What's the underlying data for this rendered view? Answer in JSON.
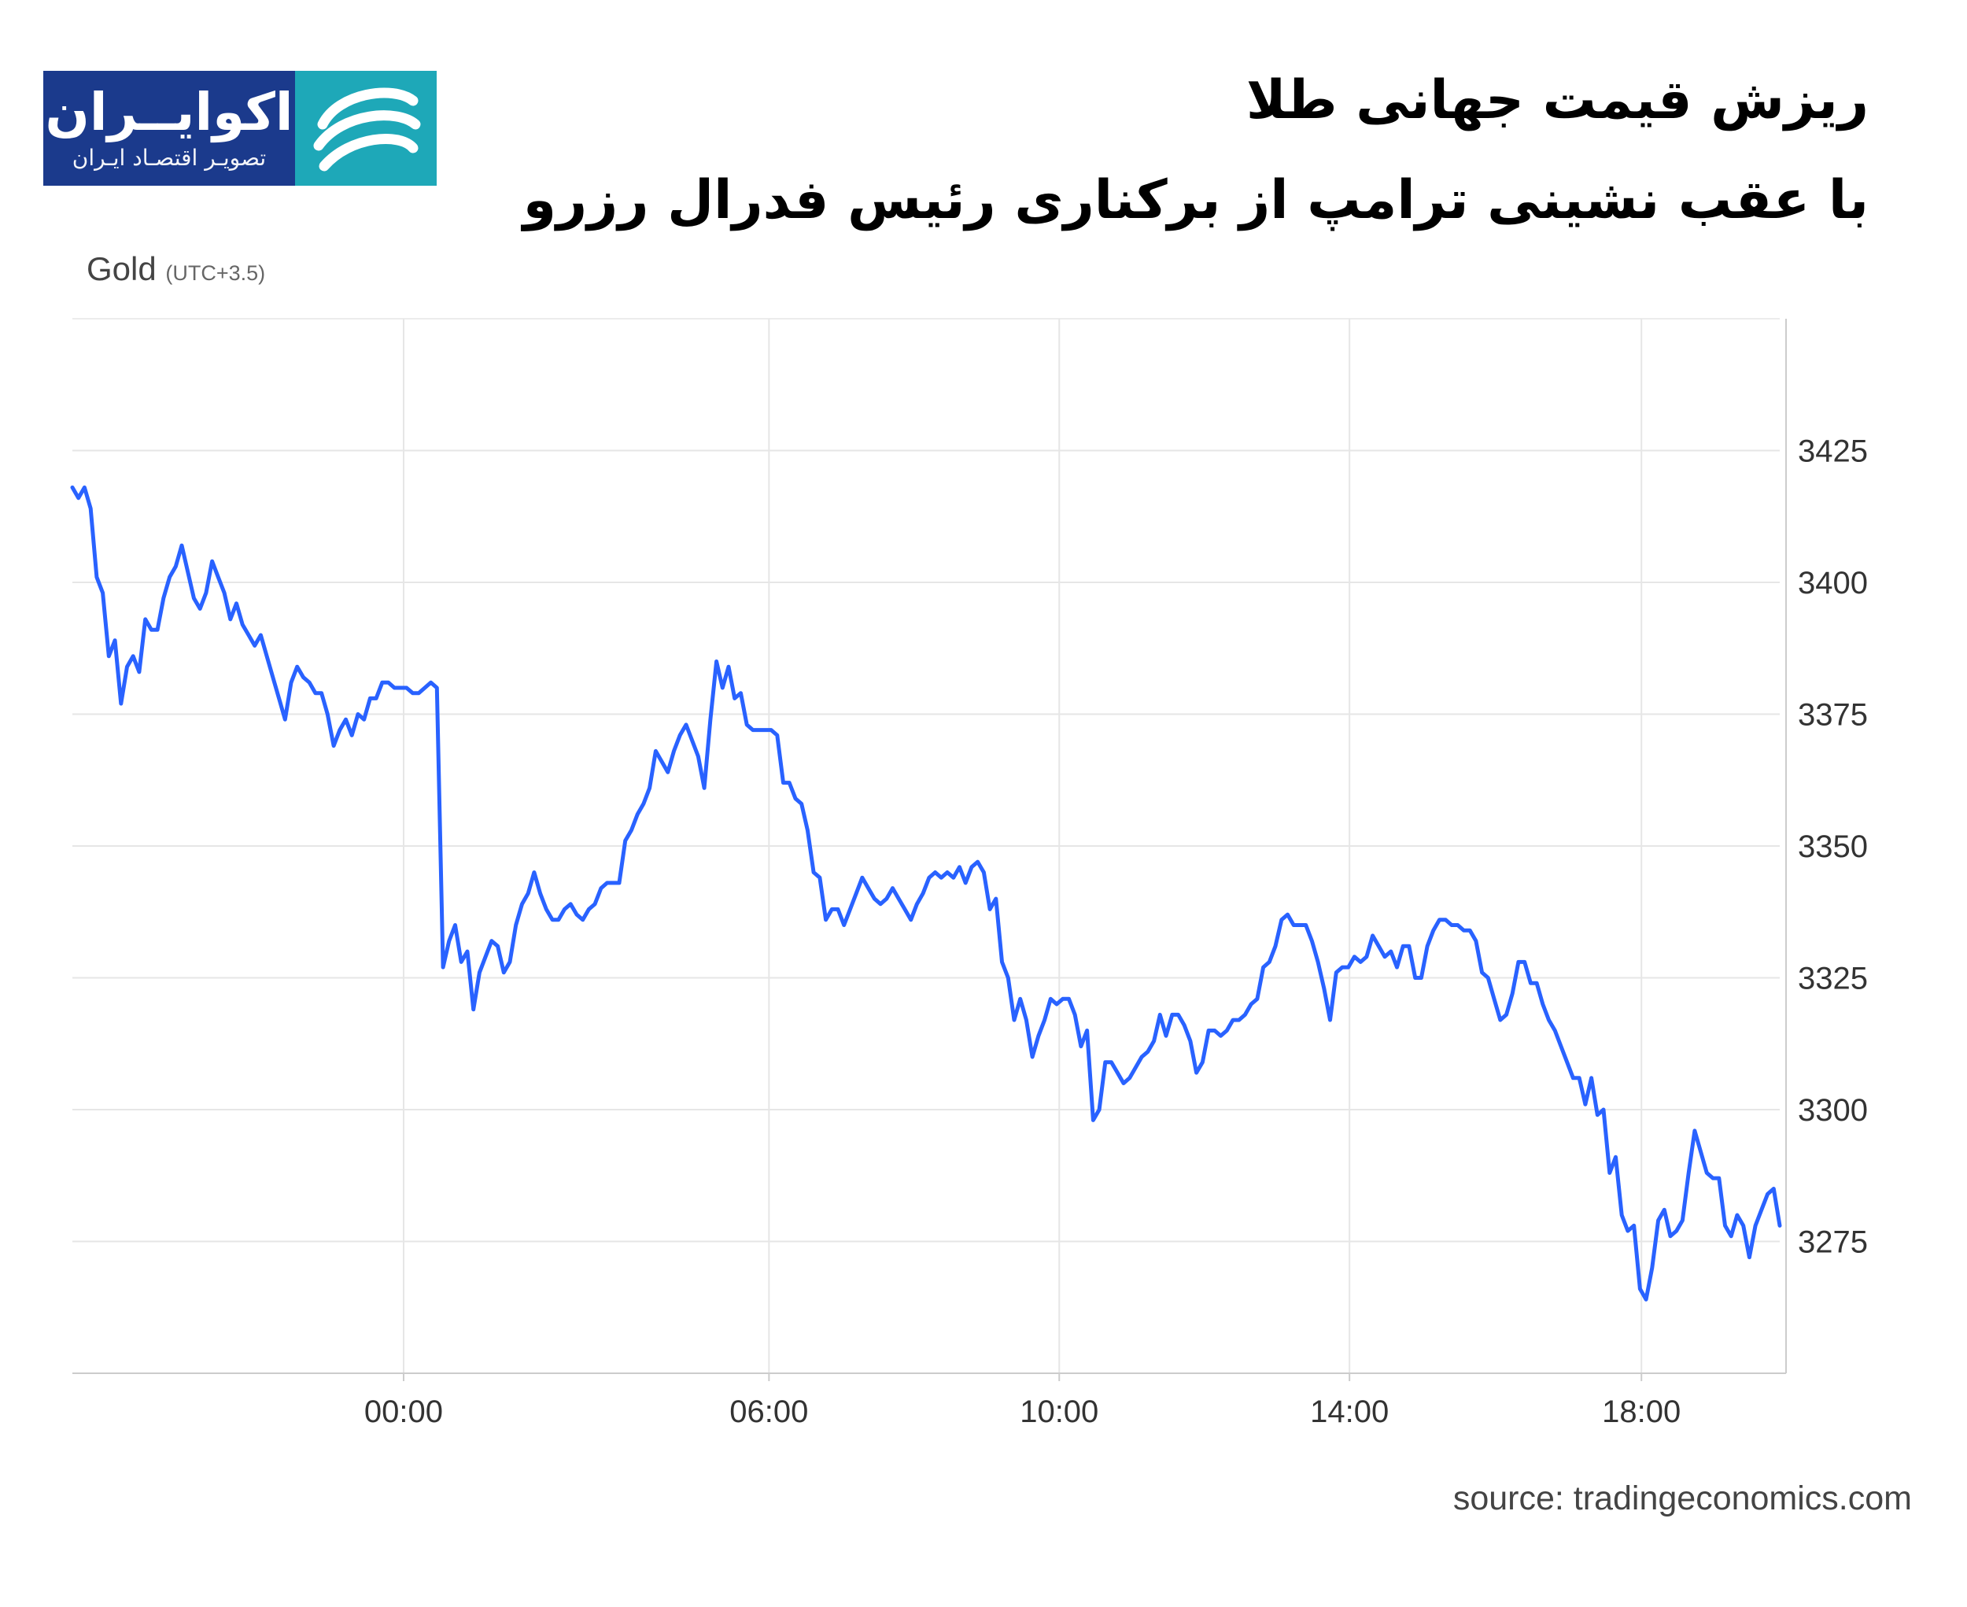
{
  "header": {
    "title": "ریزش قیمت جهانی طلا",
    "subtitle": "با عقب نشینی ترامپ از برکناری رئیس فدرال رزرو"
  },
  "logo": {
    "name": "اکوایــران",
    "tagline": "تصویـر اقتصـاد ایـران",
    "icon": "ecoiran-logo-mark",
    "colors": {
      "navy": "#1b3a8c",
      "teal": "#1ea8b8"
    }
  },
  "instrument": {
    "name": "Gold",
    "timezone": "(UTC+3.5)"
  },
  "source": "source: tradingeconomics.com",
  "chart_data": {
    "type": "line",
    "line_color": "#2962ff",
    "grid": true,
    "ylim": [
      3250,
      3450
    ],
    "yticks": [
      3275,
      3300,
      3325,
      3350,
      3375,
      3400,
      3425
    ],
    "ytick_labels": [
      "3275",
      "3300",
      "3325",
      "3350",
      "3375",
      "3400",
      "3425"
    ],
    "xlim": [
      0,
      100
    ],
    "xticks": [
      19.4,
      40.8,
      57.8,
      74.8,
      91.9
    ],
    "xtick_labels": [
      "00:00",
      "06:00",
      "10:00",
      "14:00",
      "18:00"
    ],
    "y_axis_position": "right",
    "series": [
      {
        "values": [
          3418,
          3416,
          3418,
          3414,
          3401,
          3398,
          3386,
          3389,
          3377,
          3384,
          3386,
          3383,
          3393,
          3391,
          3391,
          3397,
          3401,
          3403,
          3407,
          3402,
          3397,
          3395,
          3398,
          3404,
          3401,
          3398,
          3393,
          3396,
          3392,
          3390,
          3388,
          3390,
          3386,
          3382,
          3378,
          3374,
          3381,
          3384,
          3382,
          3381,
          3379,
          3379,
          3375,
          3369,
          3372,
          3374,
          3371,
          3375,
          3374,
          3378,
          3378,
          3381,
          3381,
          3380,
          3380,
          3380,
          3379,
          3379,
          3380,
          3381,
          3380,
          3327,
          3332,
          3335,
          3328,
          3330,
          3319,
          3326,
          3329,
          3332,
          3331,
          3326,
          3328,
          3335,
          3339,
          3341,
          3345,
          3341,
          3338,
          3336,
          3336,
          3338,
          3339,
          3337,
          3336,
          3338,
          3339,
          3342,
          3343,
          3343,
          3343,
          3351,
          3353,
          3356,
          3358,
          3361,
          3368,
          3366,
          3364,
          3368,
          3371,
          3373,
          3370,
          3367,
          3361,
          3374,
          3385,
          3380,
          3384,
          3378,
          3379,
          3373,
          3372,
          3372,
          3372,
          3372,
          3371,
          3362,
          3362,
          3359,
          3358,
          3353,
          3345,
          3344,
          3336,
          3338,
          3338,
          3335,
          3338,
          3341,
          3344,
          3342,
          3340,
          3339,
          3340,
          3342,
          3340,
          3338,
          3336,
          3339,
          3341,
          3344,
          3345,
          3344,
          3345,
          3344,
          3346,
          3343,
          3346,
          3347,
          3345,
          3338,
          3340,
          3328,
          3325,
          3317,
          3321,
          3317,
          3310,
          3314,
          3317,
          3321,
          3320,
          3321,
          3321,
          3318,
          3312,
          3315,
          3298,
          3300,
          3309,
          3309,
          3307,
          3305,
          3306,
          3308,
          3310,
          3311,
          3313,
          3318,
          3314,
          3318,
          3318,
          3316,
          3313,
          3307,
          3309,
          3315,
          3315,
          3314,
          3315,
          3317,
          3317,
          3318,
          3320,
          3321,
          3327,
          3328,
          3331,
          3336,
          3337,
          3335,
          3335,
          3335,
          3332,
          3328,
          3323,
          3317,
          3326,
          3327,
          3327,
          3329,
          3328,
          3329,
          3333,
          3331,
          3329,
          3330,
          3327,
          3331,
          3331,
          3325,
          3325,
          3331,
          3334,
          3336,
          3336,
          3335,
          3335,
          3334,
          3334,
          3332,
          3326,
          3325,
          3321,
          3317,
          3318,
          3322,
          3328,
          3328,
          3324,
          3324,
          3320,
          3317,
          3315,
          3312,
          3309,
          3306,
          3306,
          3301,
          3306,
          3299,
          3300,
          3288,
          3291,
          3280,
          3277,
          3278,
          3266,
          3264,
          3270,
          3279,
          3281,
          3276,
          3277,
          3279,
          3288,
          3296,
          3292,
          3288,
          3287,
          3287,
          3278,
          3276,
          3280,
          3278,
          3272,
          3278,
          3281,
          3284,
          3285,
          3278
        ]
      }
    ]
  }
}
